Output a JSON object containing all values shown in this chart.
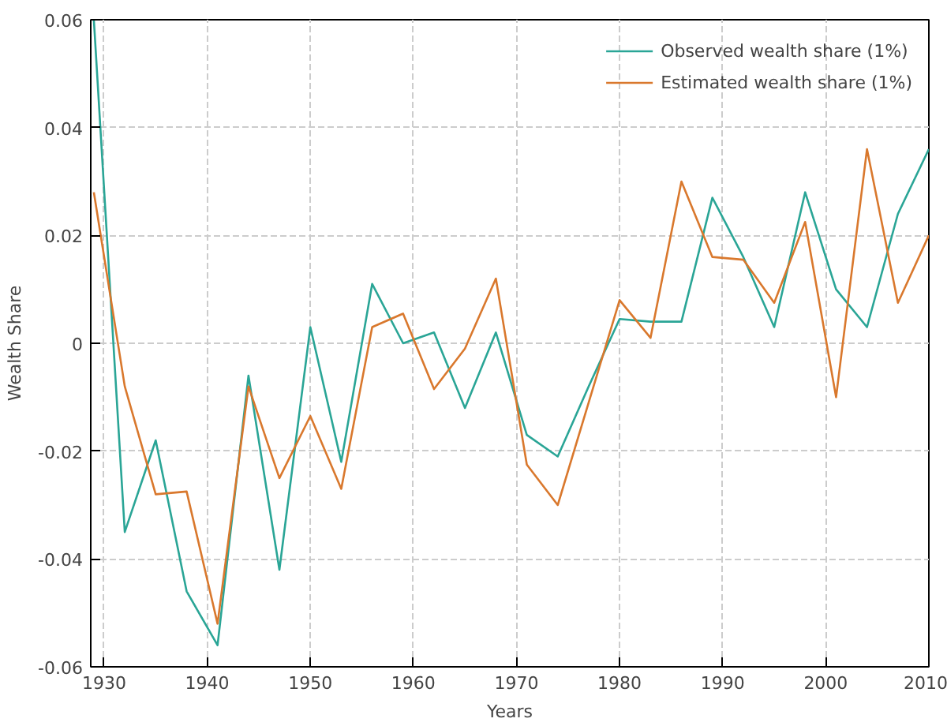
{
  "chart_data": {
    "type": "line",
    "xlabel": "Years",
    "ylabel": "Wealth Share",
    "x": [
      1929,
      1932,
      1935,
      1938,
      1941,
      1944,
      1947,
      1950,
      1953,
      1956,
      1959,
      1962,
      1965,
      1968,
      1971,
      1974,
      1977,
      1980,
      1983,
      1986,
      1989,
      1992,
      1995,
      1998,
      2001,
      2004,
      2007,
      2010
    ],
    "series": [
      {
        "name": "Observed wealth share (1%)",
        "color": "#2aa596",
        "values": [
          0.06,
          -0.035,
          -0.018,
          -0.046,
          -0.056,
          -0.006,
          -0.042,
          0.003,
          -0.022,
          0.011,
          0.0,
          0.002,
          -0.012,
          0.002,
          -0.017,
          -0.021,
          -0.008,
          0.0045,
          0.004,
          0.004,
          0.027,
          0.016,
          0.003,
          0.028,
          0.01,
          0.003,
          0.024,
          0.036
        ]
      },
      {
        "name": "Estimated wealth share (1%)",
        "color": "#d9782d",
        "values": [
          0.028,
          -0.008,
          -0.028,
          -0.0275,
          -0.052,
          -0.008,
          -0.025,
          -0.0135,
          -0.027,
          0.003,
          0.0055,
          -0.0085,
          -0.001,
          0.012,
          -0.0225,
          -0.03,
          -0.011,
          0.008,
          0.001,
          0.03,
          0.016,
          0.0155,
          0.0075,
          0.0225,
          -0.01,
          0.036,
          0.0075,
          0.02
        ]
      }
    ],
    "xlim": [
      1928.7,
      2010
    ],
    "ylim": [
      -0.06,
      0.06
    ],
    "xticks": [
      1930,
      1940,
      1950,
      1960,
      1970,
      1980,
      1990,
      2000,
      2010
    ],
    "yticks": [
      {
        "value": -0.06,
        "label": "-0.06"
      },
      {
        "value": -0.04,
        "label": "-0.04"
      },
      {
        "value": -0.02,
        "label": "-0.02"
      },
      {
        "value": 0,
        "label": "0"
      },
      {
        "value": 0.02,
        "label": "0.02"
      },
      {
        "value": 0.04,
        "label": "0.04"
      },
      {
        "value": 0.06,
        "label": "0.06"
      }
    ],
    "grid": true,
    "legend": "top right",
    "line_style": "solid",
    "marker": "none"
  }
}
